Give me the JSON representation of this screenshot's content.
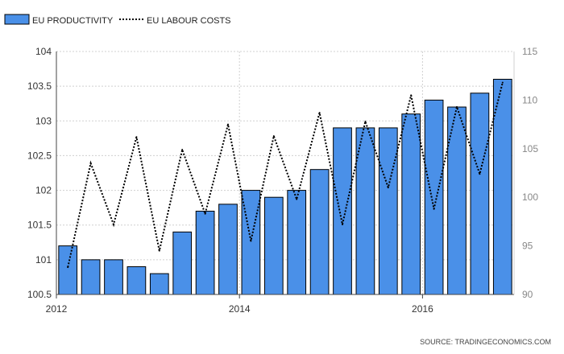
{
  "chart_data": {
    "type": "bar+line",
    "title": "",
    "legend": {
      "placement": "top-left",
      "items": [
        {
          "name": "EU PRODUCTIVITY",
          "style": "bar",
          "color": "#4a90e8"
        },
        {
          "name": "EU LABOUR COSTS",
          "style": "dotted-line",
          "color": "#000000"
        }
      ]
    },
    "x_ticks": [
      "2012",
      "2014",
      "2016"
    ],
    "left_axis": {
      "min": 100.5,
      "max": 104,
      "ticks": [
        "104",
        "103.5",
        "103",
        "102.5",
        "102",
        "101.5",
        "101",
        "100.5"
      ]
    },
    "right_axis": {
      "min": 90,
      "max": 115,
      "ticks": [
        "115",
        "110",
        "105",
        "100",
        "95",
        "90"
      ]
    },
    "grid": true,
    "series": [
      {
        "name": "EU PRODUCTIVITY",
        "axis": "left",
        "values": [
          101.2,
          101.0,
          101.0,
          100.9,
          100.8,
          101.4,
          101.7,
          101.8,
          102.0,
          101.9,
          102.0,
          102.3,
          102.9,
          102.9,
          102.9,
          103.1,
          103.3,
          103.2,
          103.4,
          103.6
        ]
      },
      {
        "name": "EU LABOUR COSTS",
        "axis": "right",
        "values": [
          92.8,
          103.5,
          97.2,
          106.2,
          94.5,
          104.9,
          98.3,
          107.5,
          95.5,
          106.3,
          99.8,
          108.7,
          97.2,
          107.8,
          101.0,
          110.5,
          98.8,
          109.3,
          102.4,
          111.8
        ]
      }
    ],
    "source": "SOURCE: TRADINGECONOMICS.COM"
  },
  "colors": {
    "bar_fill": "#4a90e8",
    "bar_stroke": "#000000",
    "line": "#000000",
    "grid": "#d0d0d0",
    "axis": "#444444"
  }
}
